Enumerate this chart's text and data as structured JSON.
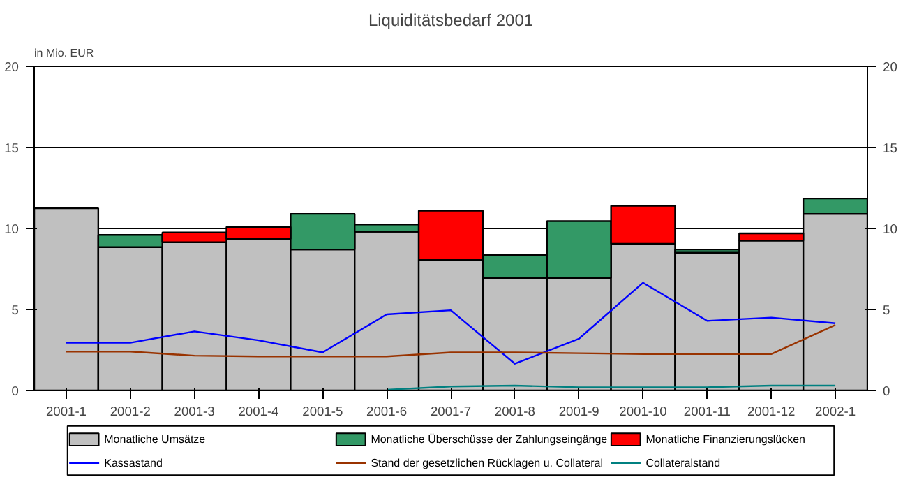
{
  "chart_data": {
    "type": "bar",
    "title": "Liquiditätsbedarf 2001",
    "annotations": [
      "in Mio. EUR"
    ],
    "stacked": true,
    "categories": [
      "2001-1",
      "2001-2",
      "2001-3",
      "2001-4",
      "2001-5",
      "2001-6",
      "2001-7",
      "2001-8",
      "2001-9",
      "2001-10",
      "2001-11",
      "2001-12",
      "2002-1"
    ],
    "series": [
      {
        "name": "Monatliche Umsätze",
        "color": "#c0c0c0",
        "values": [
          11.25,
          8.85,
          9.15,
          9.35,
          8.7,
          9.8,
          8.05,
          6.95,
          6.95,
          9.05,
          8.5,
          9.25,
          10.9
        ]
      },
      {
        "name": "Monatliche Überschüsse der Zahlungseingänge",
        "color": "#339966",
        "values": [
          0,
          0.75,
          0,
          0,
          2.2,
          0.45,
          0,
          1.4,
          3.5,
          0,
          0.2,
          0,
          0.95
        ]
      },
      {
        "name": "Monatliche Finanzierungslücken",
        "color": "#ff0000",
        "values": [
          0,
          0,
          0.6,
          0.75,
          0,
          0,
          3.05,
          0,
          0,
          2.35,
          0,
          0.45,
          0
        ]
      },
      {
        "name": "Kassastand",
        "type": "line",
        "color": "#0000ff",
        "values": [
          2.95,
          2.95,
          3.65,
          3.1,
          2.35,
          4.7,
          4.95,
          1.65,
          3.2,
          6.65,
          4.3,
          4.5,
          4.15
        ]
      },
      {
        "name": "Stand der gesetzlichen Rücklagen u. Collateral",
        "type": "line",
        "color": "#993300",
        "values": [
          2.4,
          2.4,
          2.15,
          2.1,
          2.1,
          2.1,
          2.35,
          2.35,
          2.3,
          2.25,
          2.25,
          2.25,
          4.05
        ]
      },
      {
        "name": "Collateralstand",
        "type": "line",
        "color": "#008080",
        "values": [
          null,
          null,
          null,
          null,
          null,
          0.05,
          0.25,
          0.3,
          0.2,
          0.2,
          0.2,
          0.3,
          0.3
        ]
      }
    ],
    "ylim": [
      0,
      20
    ],
    "yticks": [
      0,
      5,
      10,
      15,
      20
    ],
    "y2lim": [
      0,
      20
    ],
    "y2ticks": [
      0,
      5,
      10,
      15,
      20
    ],
    "grid": "y",
    "legend": "bottom",
    "line_style": "solid"
  }
}
